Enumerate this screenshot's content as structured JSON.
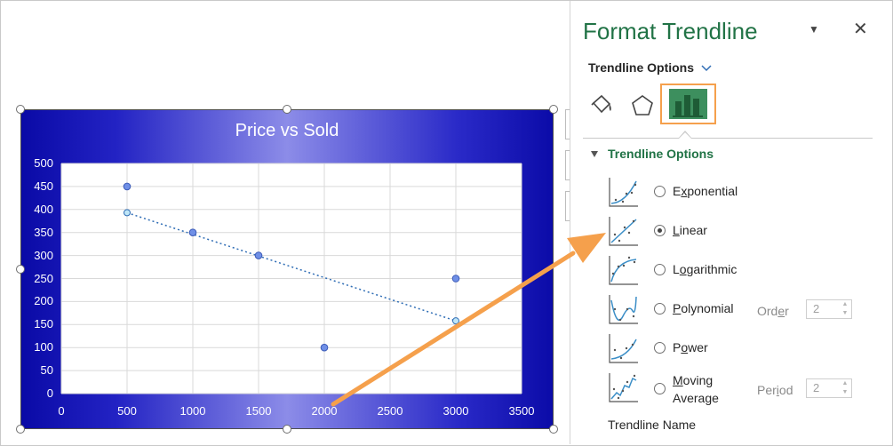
{
  "pane": {
    "title": "Format Trendline",
    "options_header": "Trendline Options",
    "section_title": "Trendline Options",
    "options": [
      {
        "label": "Exponential",
        "selected": false
      },
      {
        "label": "Linear",
        "selected": true
      },
      {
        "label": "Logarithmic",
        "selected": false
      },
      {
        "label": "Polynomial",
        "selected": false,
        "param_label": "Order",
        "param_value": "2"
      },
      {
        "label": "Power",
        "selected": false
      },
      {
        "label": "Moving Average",
        "label_line1": "Moving",
        "label_line2": "Average",
        "selected": false,
        "param_label": "Period",
        "param_value": "2"
      }
    ],
    "trendline_name_label": "Trendline Name",
    "dropdown_icon": "chevron-down-icon",
    "close_icon": "close-icon",
    "tabs": [
      "fill-line-icon",
      "effects-pentagon-icon",
      "trendline-options-chart-icon"
    ],
    "accent_color": "#217346",
    "highlight_color": "#f5a04c"
  },
  "chart_data": {
    "type": "scatter",
    "title": "Price vs Sold",
    "x": [
      500,
      1000,
      1500,
      2000,
      3000
    ],
    "y": [
      450,
      350,
      300,
      100,
      250
    ],
    "trendline": {
      "type": "linear",
      "x": [
        500,
        3000
      ],
      "y": [
        393,
        158
      ]
    },
    "xlim": [
      0,
      3500
    ],
    "ylim": [
      0,
      500
    ],
    "xticks": [
      0,
      500,
      1000,
      1500,
      2000,
      2500,
      3000,
      3500
    ],
    "yticks": [
      0,
      50,
      100,
      150,
      200,
      250,
      300,
      350,
      400,
      450,
      500
    ],
    "grid": true,
    "marker_color": "#6f8fe6",
    "trendline_color": "#2f6db5",
    "background_colors": [
      "#0a0aa6",
      "#8c8ce8"
    ]
  },
  "annotation": {
    "type": "arrow",
    "color": "#f5a04c"
  }
}
